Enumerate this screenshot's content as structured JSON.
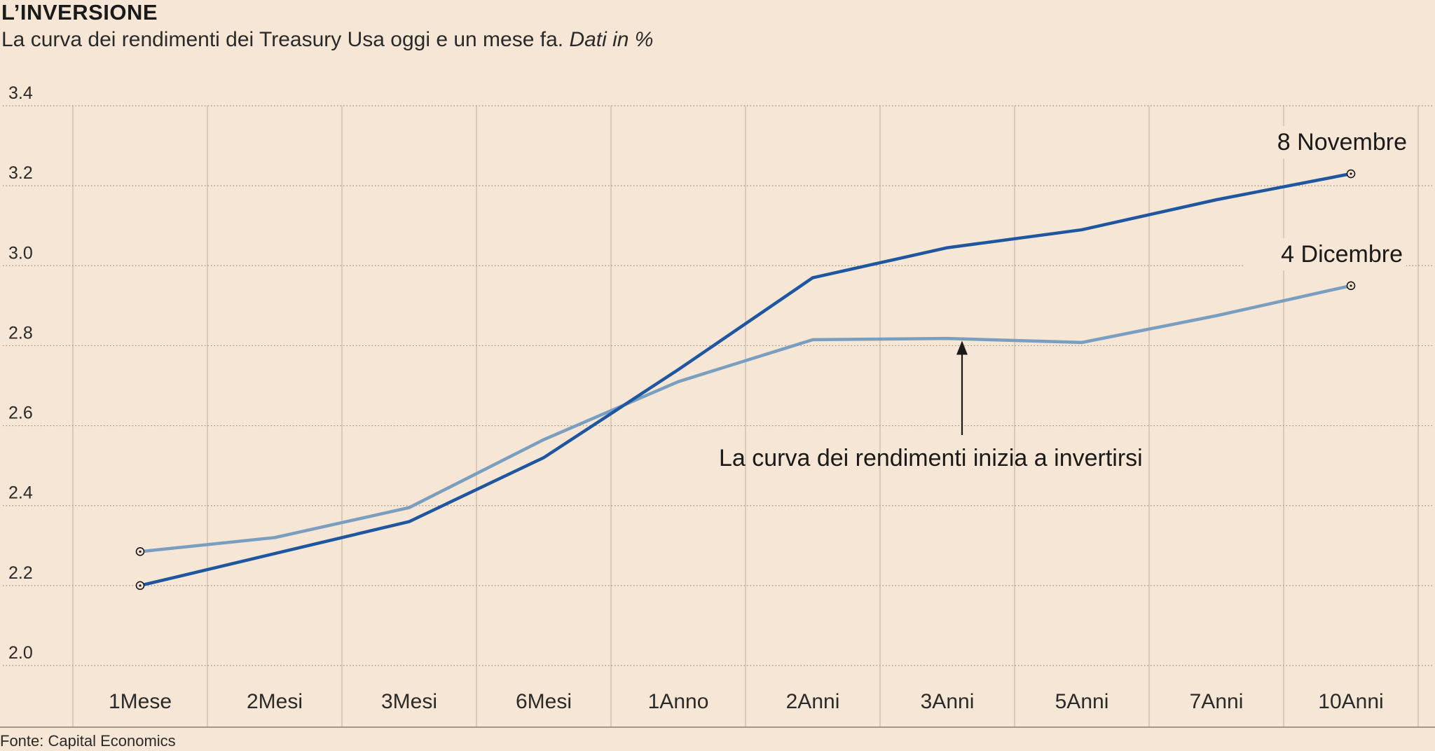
{
  "header": {
    "title": "L’INVERSIONE",
    "subtitle": "La curva dei rendimenti dei Treasury Usa oggi e un mese fa.",
    "subtitle_unit": "Dati in %"
  },
  "source": "Fonte: Capital Economics",
  "chart_data": {
    "type": "line",
    "title": "L’INVERSIONE",
    "subtitle": "La curva dei rendimenti dei Treasury Usa oggi e un mese fa. Dati in %",
    "categories": [
      "1Mese",
      "2Mesi",
      "3Mesi",
      "6Mesi",
      "1Anno",
      "2Anni",
      "3Anni",
      "5Anni",
      "7Anni",
      "10Anni"
    ],
    "y_ticks": [
      "2.0",
      "2.2",
      "2.4",
      "2.6",
      "2.8",
      "3.0",
      "3.2",
      "3.4"
    ],
    "ylim": [
      2.0,
      3.4
    ],
    "grid": true,
    "series": [
      {
        "name": "8 Novembre",
        "color": "#1f56a0",
        "values": [
          2.2,
          2.28,
          2.36,
          2.52,
          2.74,
          2.97,
          3.045,
          3.09,
          3.165,
          3.23
        ]
      },
      {
        "name": "4 Dicembre",
        "color": "#7a9ebf",
        "values": [
          2.285,
          2.32,
          2.395,
          2.565,
          2.71,
          2.815,
          2.818,
          2.808,
          2.875,
          2.95
        ]
      }
    ],
    "annotation": {
      "text": "La curva dei rendimenti inizia a invertirsi",
      "category": "3Anni",
      "value": 2.8
    }
  }
}
